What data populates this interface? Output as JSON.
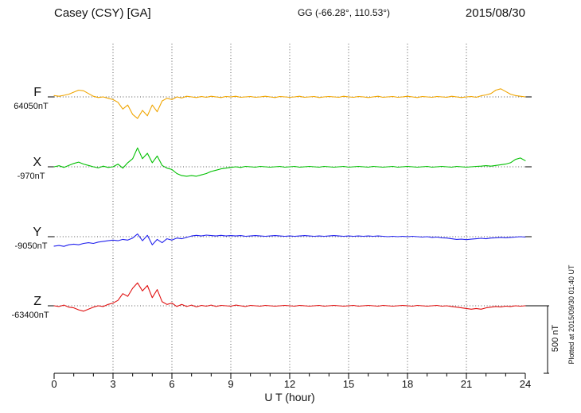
{
  "header": {
    "station": "Casey (CSY)  [GA]",
    "coords": "GG (-66.28°, 110.53°)",
    "date": "2015/08/30"
  },
  "footer_note": "Plotted at 2015/09/30 01:40 UT",
  "scale_bar": {
    "label": "500 nT",
    "nT": 500
  },
  "chart_data": {
    "type": "line",
    "title": "Casey (CSY) magnetogram 2015/08/30",
    "xlabel": "U T (hour)",
    "ylabel": "",
    "x_range": [
      0,
      24
    ],
    "x_ticks": [
      0,
      3,
      6,
      9,
      12,
      15,
      18,
      21,
      24
    ],
    "x_step_hours": 0.25,
    "grid": "dotted vertical lines at 3-hour ticks, dotted horizontal baseline per component",
    "legend_position": "left baseline labels",
    "series": [
      {
        "name": "F",
        "label": "F",
        "baseline_label": "64050nT",
        "baseline_nT": 64050,
        "color": "#f0a500",
        "offsets_nT": [
          10,
          5,
          12,
          20,
          35,
          50,
          45,
          25,
          5,
          -5,
          0,
          -10,
          -20,
          -40,
          -90,
          -60,
          -130,
          -160,
          -100,
          -140,
          -60,
          -110,
          -30,
          -10,
          -20,
          0,
          -8,
          5,
          0,
          -5,
          3,
          -3,
          5,
          0,
          -5,
          3,
          0,
          5,
          -3,
          0,
          3,
          -3,
          0,
          5,
          0,
          -5,
          3,
          0,
          -3,
          0,
          5,
          -3,
          0,
          3,
          -5,
          0,
          3,
          0,
          -3,
          5,
          0,
          -3,
          3,
          0,
          -5,
          0,
          5,
          -3,
          0,
          3,
          -3,
          0,
          5,
          0,
          -5,
          3,
          0,
          -3,
          3,
          0,
          -3,
          5,
          0,
          -5,
          0,
          3,
          -3,
          8,
          15,
          25,
          50,
          60,
          40,
          20,
          10,
          5,
          0
        ]
      },
      {
        "name": "X",
        "label": "X",
        "baseline_label": "-970nT",
        "baseline_nT": -970,
        "color": "#00c000",
        "offsets_nT": [
          0,
          8,
          -5,
          10,
          25,
          35,
          20,
          10,
          0,
          -8,
          5,
          -5,
          0,
          20,
          -10,
          30,
          60,
          140,
          60,
          100,
          30,
          80,
          10,
          -10,
          -20,
          -50,
          -65,
          -70,
          -65,
          -70,
          -60,
          -50,
          -35,
          -25,
          -15,
          -10,
          -5,
          0,
          -5,
          3,
          0,
          -3,
          3,
          0,
          -3,
          0,
          3,
          -3,
          0,
          3,
          -3,
          0,
          3,
          0,
          -3,
          3,
          0,
          -3,
          0,
          3,
          -3,
          0,
          3,
          0,
          -3,
          3,
          0,
          -3,
          0,
          3,
          -3,
          0,
          3,
          0,
          -3,
          0,
          3,
          -3,
          0,
          3,
          0,
          -3,
          3,
          0,
          -3,
          0,
          3,
          5,
          8,
          5,
          10,
          15,
          20,
          30,
          55,
          65,
          45
        ]
      },
      {
        "name": "Y",
        "label": "Y",
        "baseline_label": "-9050nT",
        "baseline_nT": -9050,
        "color": "#2222ee",
        "offsets_nT": [
          -70,
          -65,
          -72,
          -60,
          -55,
          -60,
          -50,
          -45,
          -50,
          -40,
          -35,
          -30,
          -25,
          -30,
          -20,
          -25,
          -10,
          20,
          -30,
          10,
          -60,
          -20,
          -45,
          -15,
          -25,
          -10,
          -15,
          -5,
          5,
          10,
          5,
          12,
          8,
          5,
          10,
          5,
          8,
          5,
          8,
          3,
          5,
          8,
          5,
          3,
          5,
          8,
          5,
          3,
          5,
          3,
          5,
          8,
          5,
          3,
          5,
          3,
          5,
          8,
          5,
          3,
          5,
          3,
          5,
          3,
          5,
          3,
          5,
          3,
          0,
          3,
          0,
          3,
          0,
          3,
          0,
          -3,
          0,
          -5,
          -3,
          -8,
          -10,
          -15,
          -20,
          -18,
          -22,
          -18,
          -15,
          -12,
          -15,
          -10,
          -8,
          -5,
          -8,
          -5,
          -3,
          0,
          -3
        ]
      },
      {
        "name": "Z",
        "label": "Z",
        "baseline_label": "-63400nT",
        "baseline_nT": -63400,
        "color": "#e01010",
        "offsets_nT": [
          0,
          -5,
          5,
          -10,
          -15,
          -30,
          -40,
          -25,
          -10,
          0,
          -5,
          10,
          20,
          40,
          90,
          70,
          130,
          170,
          110,
          150,
          60,
          120,
          30,
          10,
          20,
          -5,
          10,
          -5,
          5,
          -8,
          3,
          -3,
          5,
          -5,
          3,
          0,
          -3,
          5,
          0,
          -5,
          3,
          0,
          -3,
          3,
          0,
          -3,
          0,
          3,
          0,
          -3,
          3,
          0,
          -3,
          0,
          3,
          -3,
          0,
          3,
          0,
          -3,
          0,
          3,
          -3,
          0,
          3,
          0,
          -3,
          3,
          0,
          -3,
          0,
          3,
          0,
          -3,
          3,
          0,
          -3,
          0,
          3,
          -3,
          0,
          -5,
          -10,
          -15,
          -20,
          -25,
          -20,
          -25,
          -15,
          -10,
          -5,
          -8,
          -3,
          -5,
          0,
          -3,
          0
        ]
      }
    ]
  }
}
